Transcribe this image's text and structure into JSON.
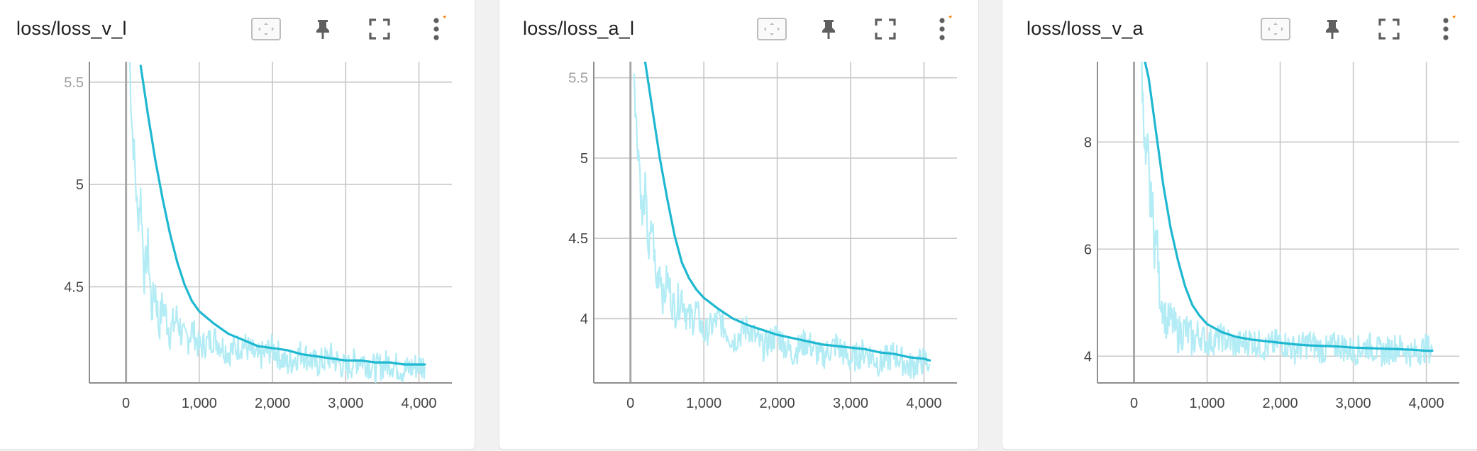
{
  "colors": {
    "smoothed": "#1fb8d1",
    "raw": "#b3ecf5",
    "grid": "#c8c8c8",
    "axis": "#8f8f8f",
    "accent": "#f57c00"
  },
  "toolbar": {
    "fit_icon": "fit-domain-icon",
    "pin_icon": "pin-icon",
    "fullscreen_icon": "fullscreen-icon",
    "menu_icon": "more-vert-icon"
  },
  "cards": [
    {
      "title": "loss/loss_v_l"
    },
    {
      "title": "loss/loss_a_l"
    },
    {
      "title": "loss/loss_v_a"
    }
  ],
  "chart_data": [
    {
      "type": "line",
      "title": "loss/loss_v_l",
      "xlim": [
        -500,
        4450
      ],
      "ylim": [
        4.03,
        5.6
      ],
      "x_ticks": [
        0,
        1000,
        2000,
        3000,
        4000
      ],
      "x_tick_labels": [
        "0",
        "1,000",
        "2,000",
        "3,000",
        "4,000"
      ],
      "y_ticks": [
        4.5,
        5,
        5.5
      ],
      "y_tick_labels": [
        "4.5",
        "5",
        "5.5"
      ],
      "grid": true,
      "series": [
        {
          "style": "smoothed",
          "x": [
            200,
            300,
            400,
            500,
            600,
            700,
            800,
            900,
            1000,
            1200,
            1400,
            1600,
            1800,
            2000,
            2200,
            2400,
            2600,
            2800,
            3000,
            3200,
            3400,
            3600,
            3800,
            4000,
            4080
          ],
          "y": [
            5.58,
            5.34,
            5.12,
            4.93,
            4.76,
            4.62,
            4.51,
            4.43,
            4.38,
            4.32,
            4.27,
            4.24,
            4.21,
            4.2,
            4.19,
            4.17,
            4.16,
            4.15,
            4.14,
            4.14,
            4.13,
            4.13,
            4.12,
            4.12,
            4.12
          ]
        },
        {
          "style": "raw",
          "x": [
            50,
            80,
            120,
            160,
            200,
            250,
            300,
            350,
            400,
            450,
            500,
            600,
            700,
            800,
            900,
            1000,
            1200,
            1400,
            1600,
            1800,
            2000,
            2200,
            2400,
            2600,
            2800,
            3000,
            3200,
            3400,
            3600,
            3800,
            4000,
            4080
          ],
          "y": [
            5.6,
            5.3,
            5.1,
            4.82,
            4.95,
            4.55,
            4.7,
            4.38,
            4.5,
            4.3,
            4.42,
            4.28,
            4.35,
            4.22,
            4.3,
            4.2,
            4.25,
            4.18,
            4.22,
            4.15,
            4.2,
            4.12,
            4.18,
            4.12,
            4.16,
            4.1,
            4.15,
            4.1,
            4.13,
            4.09,
            4.12,
            4.11
          ]
        }
      ]
    },
    {
      "type": "line",
      "title": "loss/loss_a_l",
      "xlim": [
        -500,
        4450
      ],
      "ylim": [
        3.6,
        5.6
      ],
      "x_ticks": [
        0,
        1000,
        2000,
        3000,
        4000
      ],
      "x_tick_labels": [
        "0",
        "1,000",
        "2,000",
        "3,000",
        "4,000"
      ],
      "y_ticks": [
        4,
        4.5,
        5,
        5.5
      ],
      "y_tick_labels": [
        "4",
        "4.5",
        "5",
        "5.5"
      ],
      "grid": true,
      "series": [
        {
          "style": "smoothed",
          "x": [
            200,
            300,
            400,
            500,
            600,
            700,
            800,
            900,
            1000,
            1200,
            1400,
            1600,
            1800,
            2000,
            2200,
            2400,
            2600,
            2800,
            3000,
            3200,
            3400,
            3600,
            3800,
            4000,
            4080
          ],
          "y": [
            5.6,
            5.3,
            5.0,
            4.75,
            4.52,
            4.35,
            4.25,
            4.18,
            4.13,
            4.06,
            4.0,
            3.96,
            3.93,
            3.9,
            3.88,
            3.86,
            3.84,
            3.83,
            3.82,
            3.81,
            3.79,
            3.78,
            3.76,
            3.75,
            3.74
          ]
        },
        {
          "style": "raw",
          "x": [
            50,
            80,
            120,
            160,
            200,
            250,
            300,
            350,
            400,
            450,
            500,
            600,
            700,
            800,
            900,
            1000,
            1200,
            1400,
            1600,
            1800,
            2000,
            2200,
            2400,
            2600,
            2800,
            3000,
            3200,
            3400,
            3600,
            3800,
            4000,
            4080
          ],
          "y": [
            5.55,
            5.2,
            5.0,
            4.6,
            4.8,
            4.4,
            4.6,
            4.2,
            4.35,
            4.1,
            4.25,
            4.05,
            4.15,
            3.98,
            4.05,
            3.9,
            4.0,
            3.86,
            3.95,
            3.82,
            3.9,
            3.78,
            3.86,
            3.76,
            3.84,
            3.74,
            3.8,
            3.72,
            3.78,
            3.7,
            3.74,
            3.72
          ]
        }
      ]
    },
    {
      "type": "line",
      "title": "loss/loss_v_a",
      "xlim": [
        -500,
        4450
      ],
      "ylim": [
        3.5,
        9.5
      ],
      "x_ticks": [
        0,
        1000,
        2000,
        3000,
        4000
      ],
      "x_tick_labels": [
        "0",
        "1,000",
        "2,000",
        "3,000",
        "4,000"
      ],
      "y_ticks": [
        4,
        6,
        8
      ],
      "y_tick_labels": [
        "4",
        "6",
        "8"
      ],
      "grid": true,
      "series": [
        {
          "style": "smoothed",
          "x": [
            150,
            200,
            250,
            300,
            350,
            400,
            450,
            500,
            600,
            700,
            800,
            900,
            1000,
            1200,
            1400,
            1600,
            1800,
            2000,
            2200,
            2400,
            2600,
            2800,
            3000,
            3200,
            3400,
            3600,
            3800,
            4000,
            4080
          ],
          "y": [
            9.5,
            9.2,
            8.7,
            8.2,
            7.7,
            7.2,
            6.8,
            6.4,
            5.8,
            5.3,
            4.95,
            4.75,
            4.6,
            4.45,
            4.36,
            4.31,
            4.28,
            4.25,
            4.22,
            4.2,
            4.19,
            4.18,
            4.16,
            4.15,
            4.14,
            4.13,
            4.12,
            4.1,
            4.1
          ]
        },
        {
          "style": "raw",
          "x": [
            100,
            130,
            160,
            190,
            220,
            250,
            280,
            310,
            350,
            400,
            450,
            500,
            600,
            700,
            800,
            900,
            1000,
            1200,
            1400,
            1600,
            1800,
            2000,
            2200,
            2400,
            2600,
            2800,
            3000,
            3200,
            3400,
            3600,
            3800,
            4000,
            4080
          ],
          "y": [
            9.5,
            8.5,
            7.6,
            7.9,
            6.8,
            7.0,
            6.0,
            6.3,
            5.2,
            4.9,
            4.6,
            4.7,
            4.4,
            4.5,
            4.3,
            4.4,
            4.25,
            4.35,
            4.2,
            4.3,
            4.15,
            4.28,
            4.12,
            4.25,
            4.1,
            4.22,
            4.08,
            4.2,
            4.06,
            4.18,
            4.05,
            4.15,
            4.12
          ]
        }
      ]
    }
  ]
}
